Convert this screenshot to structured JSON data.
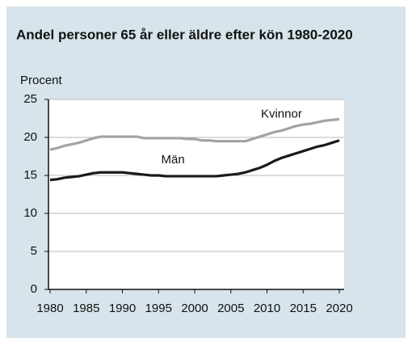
{
  "chart_data": {
    "type": "line",
    "title": "Andel personer 65 år eller äldre efter kön 1980-2020",
    "y_label": "Procent",
    "x": [
      1980,
      1981,
      1982,
      1983,
      1984,
      1985,
      1986,
      1987,
      1988,
      1989,
      1990,
      1991,
      1992,
      1993,
      1994,
      1995,
      1996,
      1997,
      1998,
      1999,
      2000,
      2001,
      2002,
      2003,
      2004,
      2005,
      2006,
      2007,
      2008,
      2009,
      2010,
      2011,
      2012,
      2013,
      2014,
      2015,
      2016,
      2017,
      2018,
      2019,
      2020
    ],
    "series": [
      {
        "name": "Kvinnor",
        "color": "#a3a3a3",
        "values": [
          18.4,
          18.6,
          18.9,
          19.1,
          19.3,
          19.6,
          19.9,
          20.1,
          20.1,
          20.1,
          20.1,
          20.1,
          20.1,
          19.9,
          19.9,
          19.9,
          19.9,
          19.9,
          19.9,
          19.8,
          19.8,
          19.6,
          19.6,
          19.5,
          19.5,
          19.5,
          19.5,
          19.5,
          19.8,
          20.1,
          20.4,
          20.7,
          20.9,
          21.2,
          21.5,
          21.7,
          21.8,
          22.0,
          22.2,
          22.3,
          22.4
        ]
      },
      {
        "name": "Män",
        "color": "#1a1a1a",
        "values": [
          14.4,
          14.5,
          14.7,
          14.8,
          14.9,
          15.1,
          15.3,
          15.4,
          15.4,
          15.4,
          15.4,
          15.3,
          15.2,
          15.1,
          15.0,
          15.0,
          14.9,
          14.9,
          14.9,
          14.9,
          14.9,
          14.9,
          14.9,
          14.9,
          15.0,
          15.1,
          15.2,
          15.4,
          15.7,
          16.0,
          16.4,
          16.9,
          17.3,
          17.6,
          17.9,
          18.2,
          18.5,
          18.8,
          19.0,
          19.3,
          19.6
        ]
      }
    ],
    "xlim": [
      1980,
      2020
    ],
    "xticks": [
      1980,
      1985,
      1990,
      1995,
      2000,
      2005,
      2010,
      2015,
      2020
    ],
    "ylim": [
      0,
      25
    ],
    "yticks": [
      0,
      5,
      10,
      15,
      20,
      25
    ],
    "grid": true
  }
}
